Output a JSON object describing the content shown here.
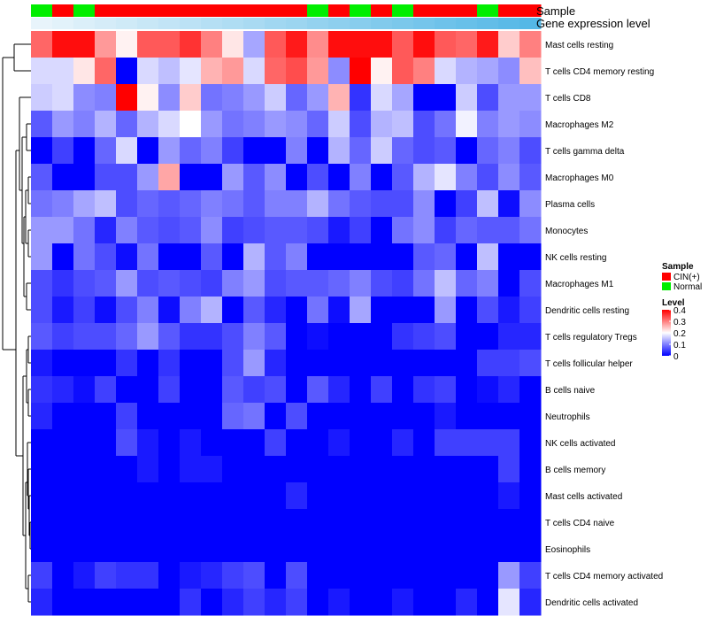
{
  "chart_data": {
    "type": "heatmap",
    "title": "",
    "row_labels": [
      "Mast cells resting",
      "T cells CD4 memory resting",
      "T cells CD8",
      "Macrophages M2",
      "T cells gamma delta",
      "Macrophages M0",
      "Plasma cells",
      "Monocytes",
      "NK cells resting",
      "Macrophages M1",
      "Dendritic cells resting",
      "T cells regulatory  Tregs",
      "T cells follicular helper",
      "B cells naive",
      "Neutrophils",
      "NK cells activated",
      "B cells memory",
      "Mast cells activated",
      "T cells CD4 naive",
      "Eosinophils",
      "T cells CD4 memory activated",
      "Dendritic cells activated"
    ],
    "n_columns": 24,
    "annotations": [
      {
        "name": "Sample",
        "values": [
          "Normal",
          "CIN(+)",
          "Normal",
          "CIN(+)",
          "CIN(+)",
          "CIN(+)",
          "CIN(+)",
          "CIN(+)",
          "CIN(+)",
          "CIN(+)",
          "CIN(+)",
          "CIN(+)",
          "CIN(+)",
          "Normal",
          "CIN(+)",
          "Normal",
          "CIN(+)",
          "Normal",
          "CIN(+)",
          "CIN(+)",
          "CIN(+)",
          "Normal",
          "CIN(+)",
          "CIN(+)"
        ]
      },
      {
        "name": "Gene expression level",
        "values": [
          0.0,
          0.04,
          0.09,
          0.13,
          0.17,
          0.22,
          0.26,
          0.3,
          0.35,
          0.39,
          0.43,
          0.48,
          0.52,
          0.57,
          0.61,
          0.65,
          0.7,
          0.74,
          0.78,
          0.83,
          0.87,
          0.91,
          0.96,
          1.0
        ]
      }
    ],
    "legends": {
      "sample": {
        "title": "Sample",
        "items": [
          {
            "label": "CIN(+)",
            "color": "#ff0000"
          },
          {
            "label": "Normal",
            "color": "#00ee00"
          }
        ]
      },
      "level": {
        "title": "Level",
        "ticks": [
          "0.4",
          "0.3",
          "0.2",
          "0.1",
          "0"
        ],
        "range": [
          0,
          0.4
        ]
      }
    },
    "colors": {
      "low": "#0000ff",
      "mid": "#ffffff",
      "high": "#ff0000",
      "gene_low": "#e8f4fb",
      "gene_high": "#55b8e6"
    },
    "values": [
      [
        0.32,
        0.39,
        0.39,
        0.28,
        0.21,
        0.33,
        0.33,
        0.36,
        0.3,
        0.22,
        0.13,
        0.33,
        0.38,
        0.29,
        0.39,
        0.39,
        0.39,
        0.33,
        0.39,
        0.33,
        0.32,
        0.38,
        0.24,
        0.3
      ],
      [
        0.17,
        0.17,
        0.22,
        0.32,
        0.0,
        0.17,
        0.15,
        0.18,
        0.26,
        0.28,
        0.17,
        0.32,
        0.34,
        0.28,
        0.11,
        0.4,
        0.21,
        0.33,
        0.3,
        0.17,
        0.14,
        0.13,
        0.11,
        0.25
      ],
      [
        0.16,
        0.17,
        0.11,
        0.1,
        0.4,
        0.21,
        0.11,
        0.24,
        0.09,
        0.1,
        0.12,
        0.16,
        0.08,
        0.12,
        0.26,
        0.04,
        0.17,
        0.13,
        0.0,
        0.0,
        0.16,
        0.06,
        0.12,
        0.12
      ],
      [
        0.07,
        0.12,
        0.1,
        0.14,
        0.08,
        0.14,
        0.17,
        0.2,
        0.12,
        0.09,
        0.1,
        0.12,
        0.11,
        0.08,
        0.16,
        0.06,
        0.14,
        0.15,
        0.06,
        0.09,
        0.19,
        0.1,
        0.12,
        0.11
      ],
      [
        0.0,
        0.05,
        0.0,
        0.08,
        0.17,
        0.0,
        0.12,
        0.08,
        0.1,
        0.05,
        0.0,
        0.0,
        0.1,
        0.0,
        0.14,
        0.08,
        0.16,
        0.08,
        0.06,
        0.07,
        0.0,
        0.08,
        0.1,
        0.06
      ],
      [
        0.07,
        0.0,
        0.0,
        0.06,
        0.06,
        0.12,
        0.27,
        0.0,
        0.0,
        0.12,
        0.07,
        0.11,
        0.0,
        0.06,
        0.0,
        0.1,
        0.0,
        0.07,
        0.14,
        0.18,
        0.1,
        0.06,
        0.11,
        0.07
      ],
      [
        0.09,
        0.1,
        0.13,
        0.15,
        0.06,
        0.08,
        0.07,
        0.08,
        0.1,
        0.09,
        0.07,
        0.1,
        0.1,
        0.14,
        0.09,
        0.07,
        0.06,
        0.06,
        0.11,
        0.0,
        0.05,
        0.15,
        0.01,
        0.11
      ],
      [
        0.12,
        0.12,
        0.09,
        0.03,
        0.1,
        0.07,
        0.06,
        0.07,
        0.11,
        0.05,
        0.06,
        0.07,
        0.07,
        0.06,
        0.02,
        0.05,
        0.0,
        0.09,
        0.11,
        0.05,
        0.08,
        0.07,
        0.07,
        0.09
      ],
      [
        0.12,
        0.0,
        0.09,
        0.06,
        0.01,
        0.09,
        0.0,
        0.0,
        0.07,
        0.0,
        0.14,
        0.07,
        0.1,
        0.0,
        0.0,
        0.0,
        0.0,
        0.0,
        0.07,
        0.08,
        0.0,
        0.15,
        0.0,
        0.0
      ],
      [
        0.06,
        0.04,
        0.06,
        0.07,
        0.12,
        0.06,
        0.07,
        0.06,
        0.05,
        0.1,
        0.12,
        0.06,
        0.07,
        0.07,
        0.08,
        0.1,
        0.06,
        0.05,
        0.09,
        0.15,
        0.08,
        0.1,
        0.0,
        0.06
      ],
      [
        0.06,
        0.02,
        0.05,
        0.01,
        0.06,
        0.1,
        0.01,
        0.1,
        0.14,
        0.0,
        0.07,
        0.03,
        0.0,
        0.09,
        0.01,
        0.13,
        0.0,
        0.0,
        0.0,
        0.12,
        0.0,
        0.06,
        0.02,
        0.05
      ],
      [
        0.07,
        0.05,
        0.06,
        0.06,
        0.08,
        0.12,
        0.07,
        0.04,
        0.04,
        0.06,
        0.1,
        0.07,
        0.0,
        0.01,
        0.0,
        0.0,
        0.0,
        0.04,
        0.05,
        0.06,
        0.0,
        0.0,
        0.03,
        0.03
      ],
      [
        0.02,
        0.0,
        0.0,
        0.0,
        0.04,
        0.0,
        0.04,
        0.0,
        0.0,
        0.06,
        0.12,
        0.03,
        0.0,
        0.0,
        0.0,
        0.0,
        0.0,
        0.0,
        0.0,
        0.0,
        0.0,
        0.05,
        0.05,
        0.06
      ],
      [
        0.04,
        0.03,
        0.01,
        0.05,
        0.0,
        0.0,
        0.05,
        0.0,
        0.0,
        0.07,
        0.05,
        0.06,
        0.0,
        0.07,
        0.03,
        0.0,
        0.05,
        0.0,
        0.04,
        0.05,
        0.0,
        0.01,
        0.03,
        0.0
      ],
      [
        0.03,
        0.0,
        0.0,
        0.0,
        0.05,
        0.0,
        0.0,
        0.0,
        0.0,
        0.08,
        0.09,
        0.0,
        0.06,
        0.0,
        0.0,
        0.0,
        0.0,
        0.0,
        0.0,
        0.02,
        0.0,
        0.0,
        0.0,
        0.0
      ],
      [
        0.0,
        0.0,
        0.0,
        0.0,
        0.06,
        0.02,
        0.0,
        0.02,
        0.0,
        0.0,
        0.0,
        0.05,
        0.0,
        0.0,
        0.02,
        0.0,
        0.0,
        0.03,
        0.0,
        0.05,
        0.05,
        0.05,
        0.05,
        0.0
      ],
      [
        0.0,
        0.0,
        0.0,
        0.0,
        0.0,
        0.02,
        0.0,
        0.02,
        0.02,
        0.0,
        0.0,
        0.0,
        0.0,
        0.0,
        0.0,
        0.0,
        0.0,
        0.0,
        0.0,
        0.0,
        0.0,
        0.0,
        0.05,
        0.0
      ],
      [
        0.0,
        0.0,
        0.0,
        0.0,
        0.0,
        0.0,
        0.0,
        0.0,
        0.0,
        0.0,
        0.0,
        0.0,
        0.03,
        0.0,
        0.0,
        0.0,
        0.0,
        0.0,
        0.0,
        0.0,
        0.0,
        0.0,
        0.02,
        0.0
      ],
      [
        0.0,
        0.0,
        0.0,
        0.0,
        0.0,
        0.0,
        0.0,
        0.0,
        0.0,
        0.0,
        0.0,
        0.0,
        0.0,
        0.0,
        0.0,
        0.0,
        0.0,
        0.0,
        0.0,
        0.0,
        0.0,
        0.0,
        0.0,
        0.0
      ],
      [
        0.0,
        0.0,
        0.0,
        0.0,
        0.0,
        0.0,
        0.0,
        0.0,
        0.0,
        0.0,
        0.0,
        0.0,
        0.0,
        0.0,
        0.0,
        0.0,
        0.0,
        0.0,
        0.0,
        0.0,
        0.0,
        0.0,
        0.0,
        0.0
      ],
      [
        0.05,
        0.0,
        0.02,
        0.05,
        0.04,
        0.04,
        0.0,
        0.02,
        0.03,
        0.05,
        0.06,
        0.0,
        0.06,
        0.0,
        0.0,
        0.0,
        0.0,
        0.0,
        0.0,
        0.0,
        0.0,
        0.0,
        0.12,
        0.05
      ],
      [
        0.03,
        0.0,
        0.0,
        0.0,
        0.0,
        0.0,
        0.0,
        0.04,
        0.0,
        0.03,
        0.05,
        0.03,
        0.05,
        0.0,
        0.02,
        0.0,
        0.0,
        0.02,
        0.0,
        0.0,
        0.03,
        0.0,
        0.18,
        0.03
      ]
    ]
  }
}
